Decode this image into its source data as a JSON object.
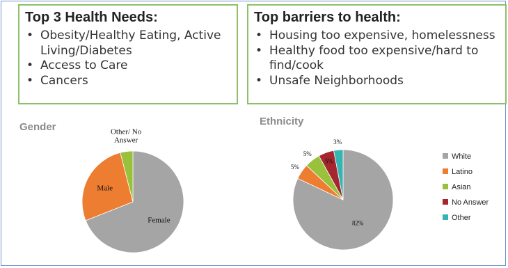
{
  "needs": {
    "heading": "Top 3 Health Needs:",
    "items": [
      "Obesity/Healthy Eating, Active Living/Diabetes",
      "Access to Care",
      "Cancers"
    ]
  },
  "barriers": {
    "heading": "Top barriers to health:",
    "items": [
      "Housing too expensive, homelessness",
      "Healthy food too expensive/hard to find/cook",
      "Unsafe Neighborhoods"
    ]
  },
  "chart_data": [
    {
      "type": "pie",
      "title": "Gender",
      "labels": [
        "Female",
        "Male",
        "Other/ No Answer"
      ],
      "values": [
        69,
        27,
        4
      ],
      "colors": [
        "#a5a5a5",
        "#ed7d31",
        "#9ac13c"
      ]
    },
    {
      "type": "pie",
      "title": "Ethnicity",
      "labels": [
        "White",
        "Latino",
        "Asian",
        "No Answer",
        "Other"
      ],
      "values": [
        82,
        5,
        5,
        5,
        3
      ],
      "data_labels": [
        "82%",
        "5%",
        "5%",
        "5%",
        "3%"
      ],
      "colors": [
        "#a5a5a5",
        "#ed7d31",
        "#9ac13c",
        "#a5262e",
        "#36b4b2"
      ],
      "legend": "right"
    }
  ]
}
